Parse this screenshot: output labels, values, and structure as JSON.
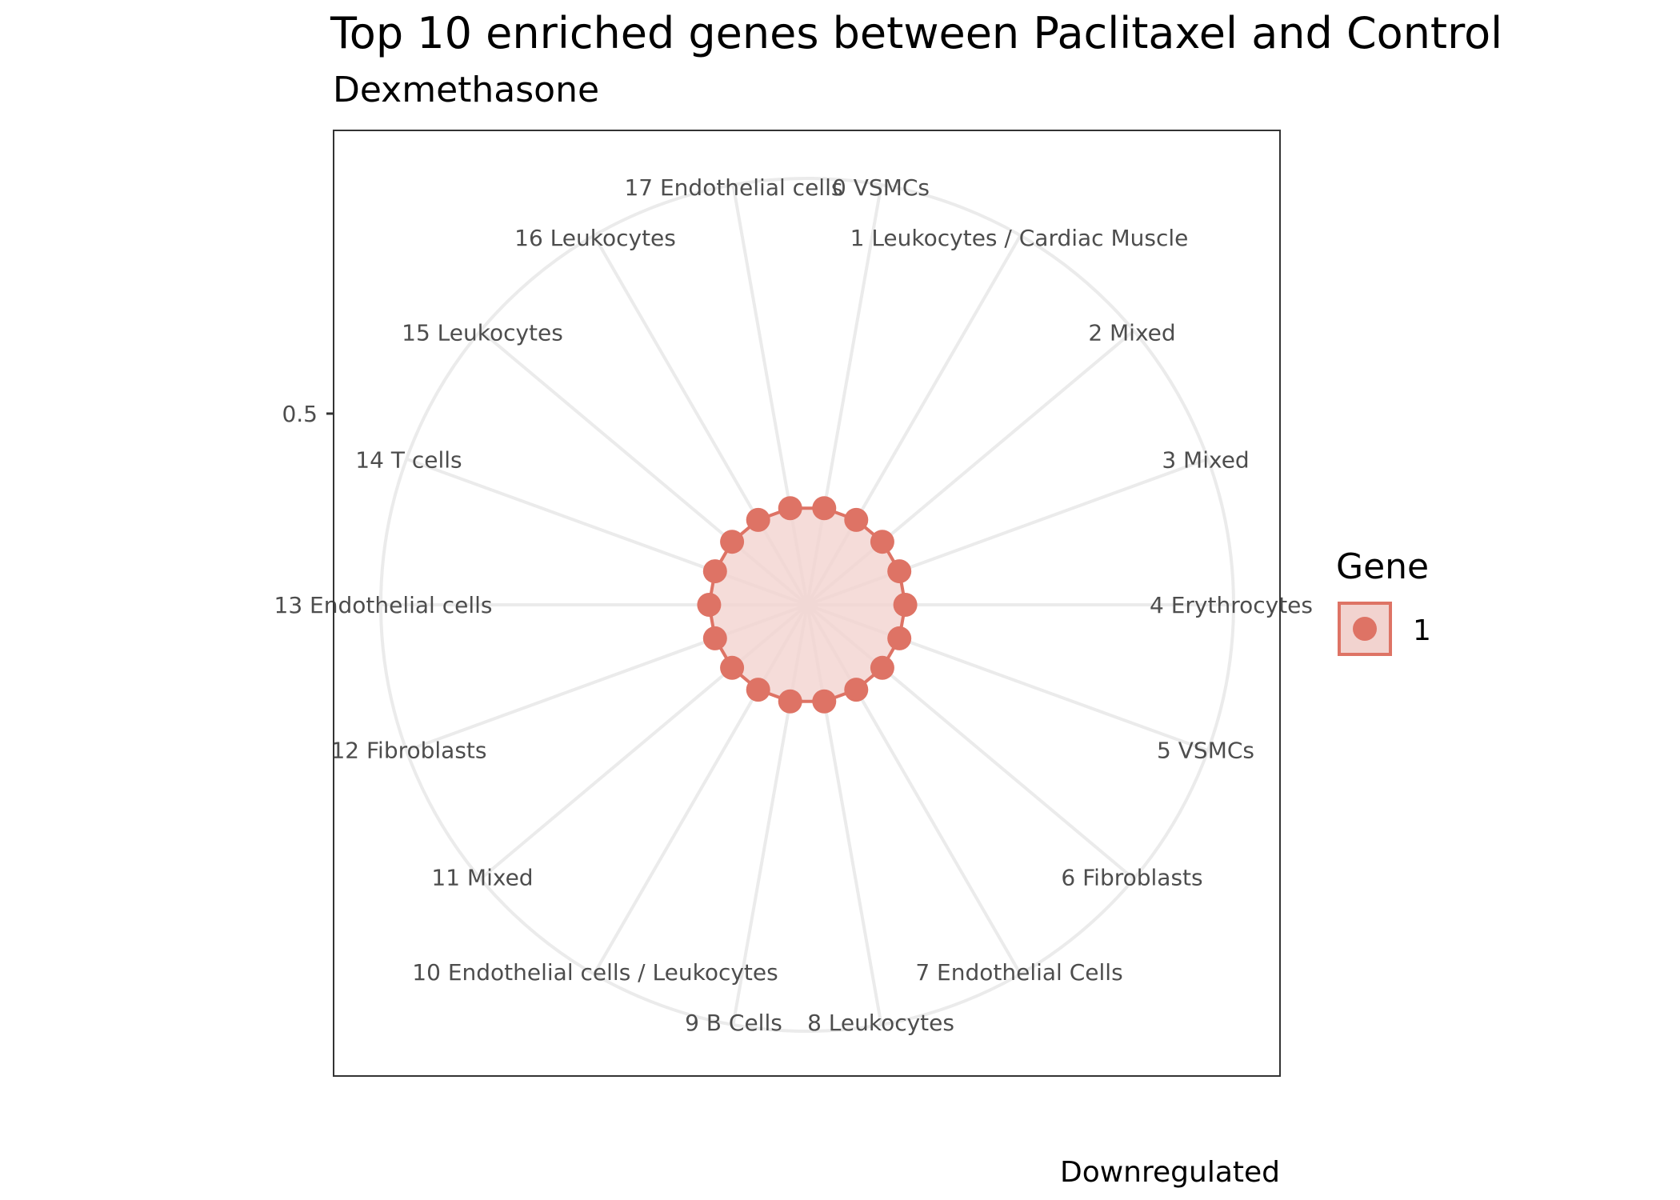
{
  "chart_data": {
    "type": "radar",
    "title": "Top 10 enriched genes between Paclitaxel and Control",
    "subtitle": "Dexmethasone",
    "caption": "Downregulated",
    "categories": [
      "0 VSMCs",
      "1 Leukocytes / Cardiac Muscle",
      "2 Mixed",
      "3 Mixed",
      "4 Erythrocytes",
      "5 VSMCs",
      "6 Fibroblasts",
      "7 Endothelial Cells",
      "8 Leukocytes",
      "9 B Cells",
      "10 Endothelial cells / Leukocytes",
      "11 Mixed",
      "12 Fibroblasts",
      "13 Endothelial cells",
      "14 T cells",
      "15 Leukocytes",
      "16 Leukocytes",
      "17 Endothelial cells"
    ],
    "series": [
      {
        "name": "1",
        "values": [
          0.23,
          0.23,
          0.23,
          0.23,
          0.23,
          0.23,
          0.23,
          0.23,
          0.23,
          0.23,
          0.23,
          0.23,
          0.23,
          0.23,
          0.23,
          0.23,
          0.23,
          0.23
        ]
      }
    ],
    "y_ticks": [
      {
        "value": 0.5,
        "label": "0.5"
      }
    ],
    "ylim": [
      0,
      1
    ],
    "grid": true,
    "legend": {
      "title": "Gene",
      "position": "right"
    },
    "colors": {
      "series": "#de7365",
      "fill": "#f2d3cf",
      "grid": "#ebebeb",
      "panel_border": "#333333"
    }
  }
}
